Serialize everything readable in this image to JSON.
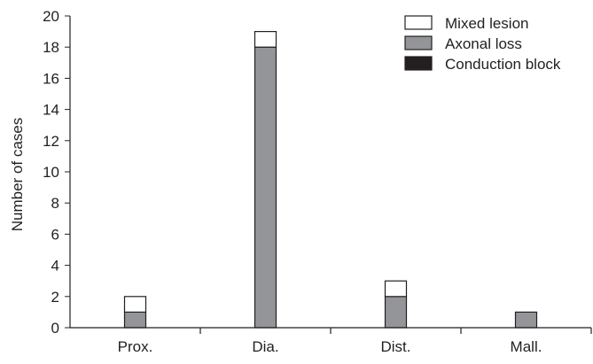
{
  "chart_data": {
    "type": "bar",
    "stacked": true,
    "title": "",
    "xlabel": "",
    "ylabel": "Number of cases",
    "ylim": [
      0,
      20
    ],
    "yticks": [
      "0",
      "2",
      "4",
      "6",
      "8",
      "10",
      "12",
      "14",
      "16",
      "18",
      "20"
    ],
    "categories": [
      "Prox.",
      "Dia.",
      "Dist.",
      "Mall."
    ],
    "series": [
      {
        "name": "Conduction block",
        "values": [
          0,
          0,
          0,
          0
        ],
        "color": "#231f20"
      },
      {
        "name": "Axonal loss",
        "values": [
          1,
          18,
          2,
          1
        ],
        "color": "#939598"
      },
      {
        "name": "Mixed lesion",
        "values": [
          1,
          1,
          1,
          0
        ],
        "color": "#ffffff"
      }
    ],
    "legend": {
      "position": "top-right",
      "order": [
        "Mixed lesion",
        "Axonal loss",
        "Conduction block"
      ]
    },
    "grid": false
  }
}
